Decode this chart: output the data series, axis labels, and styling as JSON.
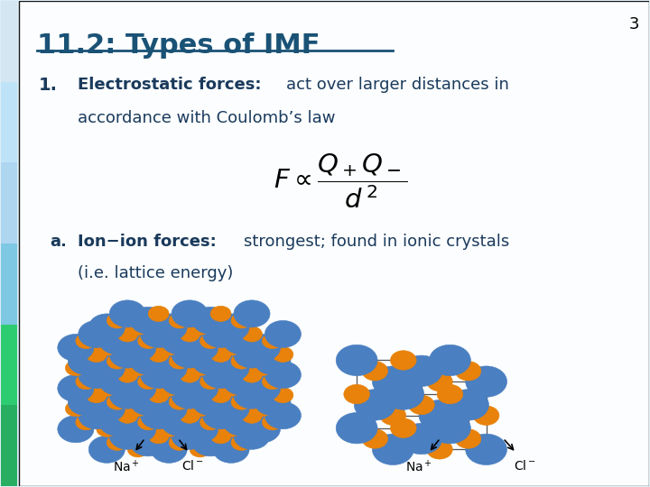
{
  "title": "11.2: Types of IMF",
  "title_color": "#1a5276",
  "title_fontsize": 22,
  "background_color": "#ddeef6",
  "number": "3",
  "point1_bold": "Electrostatic forces:",
  "point1_rest": "act over larger distances in",
  "point1_rest2": "accordance with Coulomb’s law",
  "point_a_bold": "Ion−ion forces:",
  "point_a_rest": "strongest; found in ionic crystals",
  "point_a_rest2": "(i.e. lattice energy)",
  "text_color": "#1a3a5c",
  "blue_sphere": "#4a7fc1",
  "orange_sphere": "#e8820a",
  "left_bar_colors": [
    "#27ae60",
    "#2ecc71",
    "#7ec8e3",
    "#aed6f1",
    "#bee3f8",
    "#d4e6f1"
  ]
}
